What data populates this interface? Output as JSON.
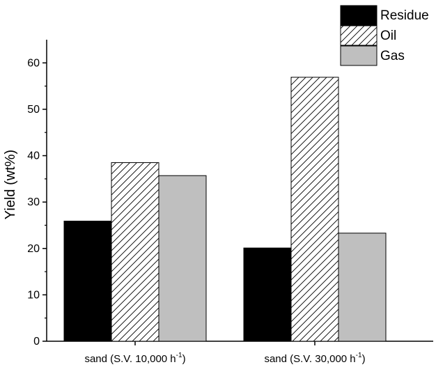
{
  "chart_data": {
    "type": "bar",
    "categories": [
      "sand (S.V. 10,000 h",
      "sand (S.V. 30,000 h"
    ],
    "category_unit_superscript": "-1",
    "category_suffix": ")",
    "series": [
      {
        "name": "Residue",
        "values": [
          25.9,
          20.1
        ],
        "fill": "#000000",
        "pattern": "solid"
      },
      {
        "name": "Oil",
        "values": [
          38.5,
          56.9
        ],
        "fill": "#ffffff",
        "pattern": "diagonal-hatch"
      },
      {
        "name": "Gas",
        "values": [
          35.7,
          23.3
        ],
        "fill": "#bfbfbf",
        "pattern": "solid"
      }
    ],
    "ylabel": "Yield (wt%)",
    "xlabel": "",
    "ylim": [
      0,
      65
    ],
    "yticks": [
      0,
      10,
      20,
      30,
      40,
      50,
      60
    ],
    "legend_position": "top-right",
    "grid": false
  }
}
